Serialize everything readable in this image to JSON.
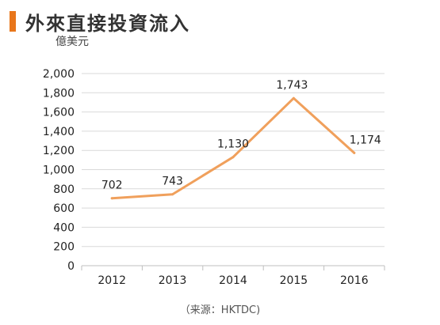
{
  "header": {
    "title": "外來直接投資流入",
    "unit": "億美元",
    "accent_color": "#E8761B"
  },
  "source": "（来源：HKTDC)",
  "chart_data": {
    "type": "line",
    "title": "外來直接投資流入",
    "ylabel": "億美元",
    "xlabel": "",
    "categories": [
      "2012",
      "2013",
      "2014",
      "2015",
      "2016"
    ],
    "series": [
      {
        "values": [
          702,
          743,
          1130,
          1743,
          1174
        ],
        "labels": [
          "702",
          "743",
          "1,130",
          "1,743",
          "1,174"
        ],
        "color": "#F0A05C"
      }
    ],
    "ylim": [
      0,
      2000
    ],
    "yticks": [
      0,
      200,
      400,
      600,
      800,
      1000,
      1200,
      1400,
      1600,
      1800,
      2000
    ],
    "ytick_labels": [
      "0",
      "200",
      "400",
      "600",
      "800",
      "1,000",
      "1,200",
      "1,400",
      "1,600",
      "1,800",
      "2,000"
    ],
    "grid": true,
    "legend": "none"
  }
}
